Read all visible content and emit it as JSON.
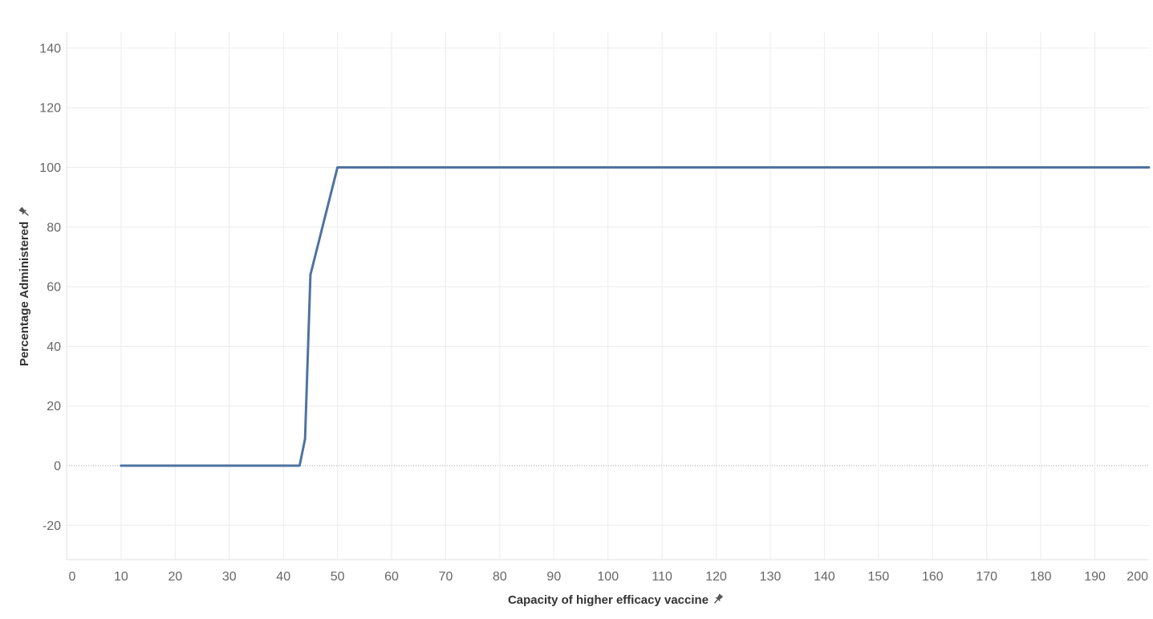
{
  "chart_data": {
    "type": "line",
    "xlabel": "Capacity of higher efficacy vaccine",
    "ylabel": "Percentage Administered",
    "pin_icon": "pin-icon",
    "xlim": [
      0,
      200
    ],
    "ylim": [
      -30,
      145
    ],
    "x_ticks": [
      0,
      10,
      20,
      30,
      40,
      50,
      60,
      70,
      80,
      90,
      100,
      110,
      120,
      130,
      140,
      150,
      160,
      170,
      180,
      190,
      200
    ],
    "y_ticks": [
      -20,
      0,
      20,
      40,
      60,
      80,
      100,
      120,
      140
    ],
    "grid": true,
    "legend": "none",
    "line_color": "#4e73a0",
    "series": [
      {
        "x": [
          10,
          20,
          30,
          40,
          43,
          44,
          45,
          50,
          60,
          80,
          100,
          120,
          140,
          160,
          180,
          200
        ],
        "y": [
          0,
          0,
          0,
          0,
          0,
          9,
          64,
          100,
          100,
          100,
          100,
          100,
          100,
          100,
          100,
          100
        ]
      }
    ]
  }
}
